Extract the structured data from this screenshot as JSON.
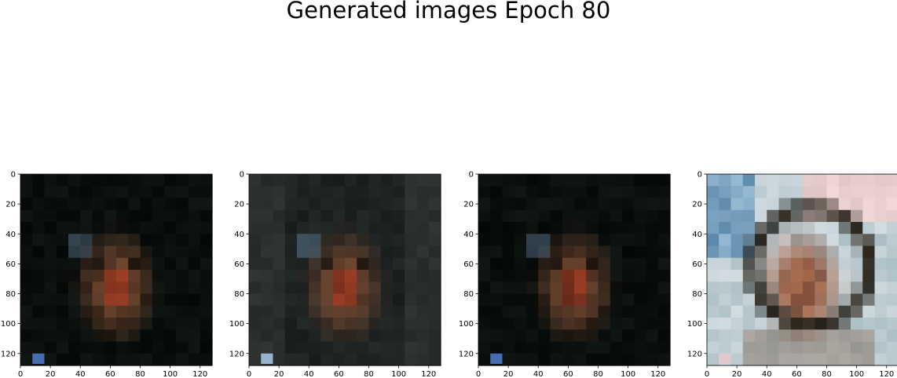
{
  "figure": {
    "suptitle": "Generated images Epoch 80",
    "panels": [
      {
        "name": "generated-image-1",
        "xticks": [
          "0",
          "20",
          "40",
          "60",
          "80",
          "100",
          "120"
        ],
        "yticks": [
          "0",
          "20",
          "40",
          "60",
          "80",
          "100",
          "120"
        ],
        "variant": "dark"
      },
      {
        "name": "generated-image-2",
        "xticks": [
          "0",
          "20",
          "40",
          "60",
          "80",
          "100",
          "120"
        ],
        "yticks": [
          "0",
          "20",
          "40",
          "60",
          "80",
          "100",
          "120"
        ],
        "variant": "medium"
      },
      {
        "name": "generated-image-3",
        "xticks": [
          "0",
          "20",
          "40",
          "60",
          "80",
          "100",
          "120"
        ],
        "yticks": [
          "0",
          "20",
          "40",
          "60",
          "80",
          "100",
          "120"
        ],
        "variant": "dark"
      },
      {
        "name": "generated-image-4",
        "xticks": [
          "0",
          "20",
          "40",
          "60",
          "80",
          "100",
          "120"
        ],
        "yticks": [
          "0",
          "20",
          "40",
          "60",
          "80",
          "100",
          "120"
        ],
        "variant": "light"
      }
    ]
  }
}
